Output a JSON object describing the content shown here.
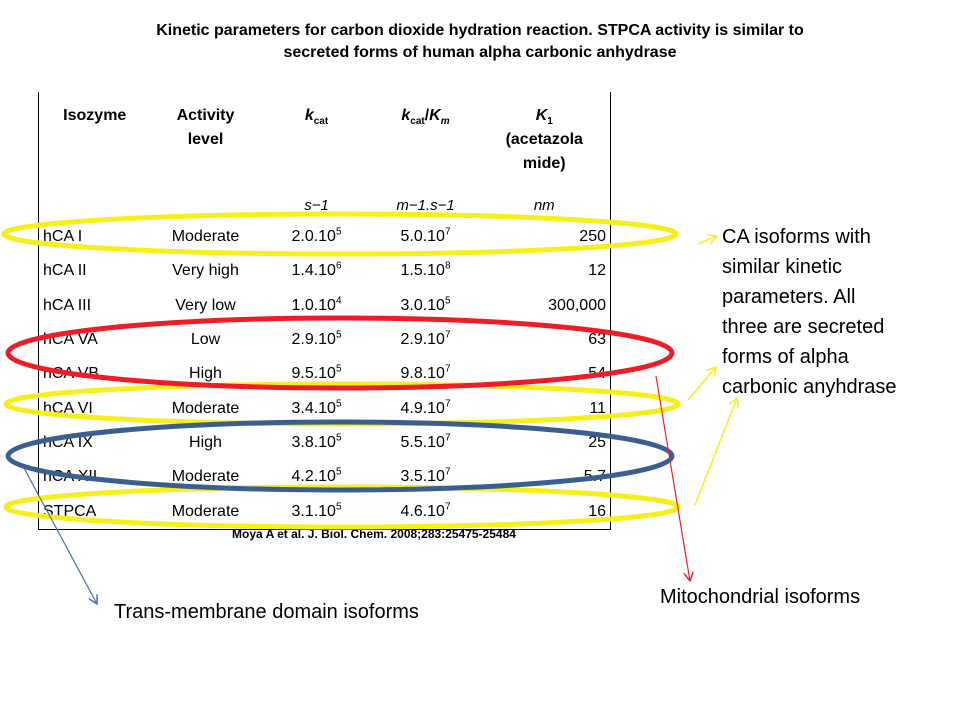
{
  "title": {
    "line1": "Kinetic parameters for carbon dioxide hydration reaction. STPCA activity is similar to",
    "line2": "secreted forms of human alpha carbonic anhydrase"
  },
  "table": {
    "headers": {
      "isozyme": "Isozyme",
      "activity_1": "Activity",
      "activity_2": "level",
      "kcat_k": "k",
      "kcat_sub": "cat",
      "kcatkm_k": "k",
      "kcatkm_sub": "cat",
      "kcatkm_slash": "/",
      "kcatkm_K": "K",
      "kcatkm_m": "m",
      "ki_K": "K",
      "ki_sub": "1",
      "ki_l1": "(acetazola",
      "ki_l2": "mide)"
    },
    "units": {
      "kcat": "s−1",
      "kcatkm": "m−1.s−1",
      "ki": "nm"
    },
    "rows": [
      {
        "isozyme": "hCA I",
        "activity": "Moderate",
        "kcat_base": "2.0.10",
        "kcat_exp": "5",
        "kcatkm_base": "5.0.10",
        "kcatkm_exp": "7",
        "ki": "250"
      },
      {
        "isozyme": "hCA II",
        "activity": "Very high",
        "kcat_base": "1.4.10",
        "kcat_exp": "6",
        "kcatkm_base": "1.5.10",
        "kcatkm_exp": "8",
        "ki": "12"
      },
      {
        "isozyme": "hCA III",
        "activity": "Very low",
        "kcat_base": "1.0.10",
        "kcat_exp": "4",
        "kcatkm_base": "3.0.10",
        "kcatkm_exp": "5",
        "ki": "300,000"
      },
      {
        "isozyme": "hCA VA",
        "activity": "Low",
        "kcat_base": "2.9.10",
        "kcat_exp": "5",
        "kcatkm_base": "2.9.10",
        "kcatkm_exp": "7",
        "ki": "63"
      },
      {
        "isozyme": "hCA VB",
        "activity": "High",
        "kcat_base": "9.5.10",
        "kcat_exp": "5",
        "kcatkm_base": "9.8.10",
        "kcatkm_exp": "7",
        "ki": "54"
      },
      {
        "isozyme": "hCA VI",
        "activity": "Moderate",
        "kcat_base": "3.4.10",
        "kcat_exp": "5",
        "kcatkm_base": "4.9.10",
        "kcatkm_exp": "7",
        "ki": "11"
      },
      {
        "isozyme": "hCA IX",
        "activity": "High",
        "kcat_base": "3.8.10",
        "kcat_exp": "5",
        "kcatkm_base": "5.5.10",
        "kcatkm_exp": "7",
        "ki": "25"
      },
      {
        "isozyme": "hCA XII",
        "activity": "Moderate",
        "kcat_base": "4.2.10",
        "kcat_exp": "5",
        "kcatkm_base": "3.5.10",
        "kcatkm_exp": "7",
        "ki": "5.7"
      },
      {
        "isozyme": "STPCA",
        "activity": "Moderate",
        "kcat_base": "3.1.10",
        "kcat_exp": "5",
        "kcatkm_base": "4.6.10",
        "kcatkm_exp": "7",
        "ki": "16"
      }
    ]
  },
  "citation": "Moya A et al. J. Biol. Chem. 2008;283:25475-25484",
  "annotations": {
    "secreted": [
      "CA isoforms with",
      "similar kinetic",
      "parameters. All",
      "three are secreted",
      "forms of alpha",
      "carbonic anyhdrase"
    ],
    "mitochondrial": "Mitochondrial isoforms",
    "transmembrane": "Trans-membrane domain isoforms"
  },
  "colors": {
    "yellow": "#f7ef1a",
    "red": "#ee1c24",
    "blue": "#3a5f8f",
    "red_arrow": "#e8252a",
    "blue_arrow": "#4a6fa5"
  }
}
